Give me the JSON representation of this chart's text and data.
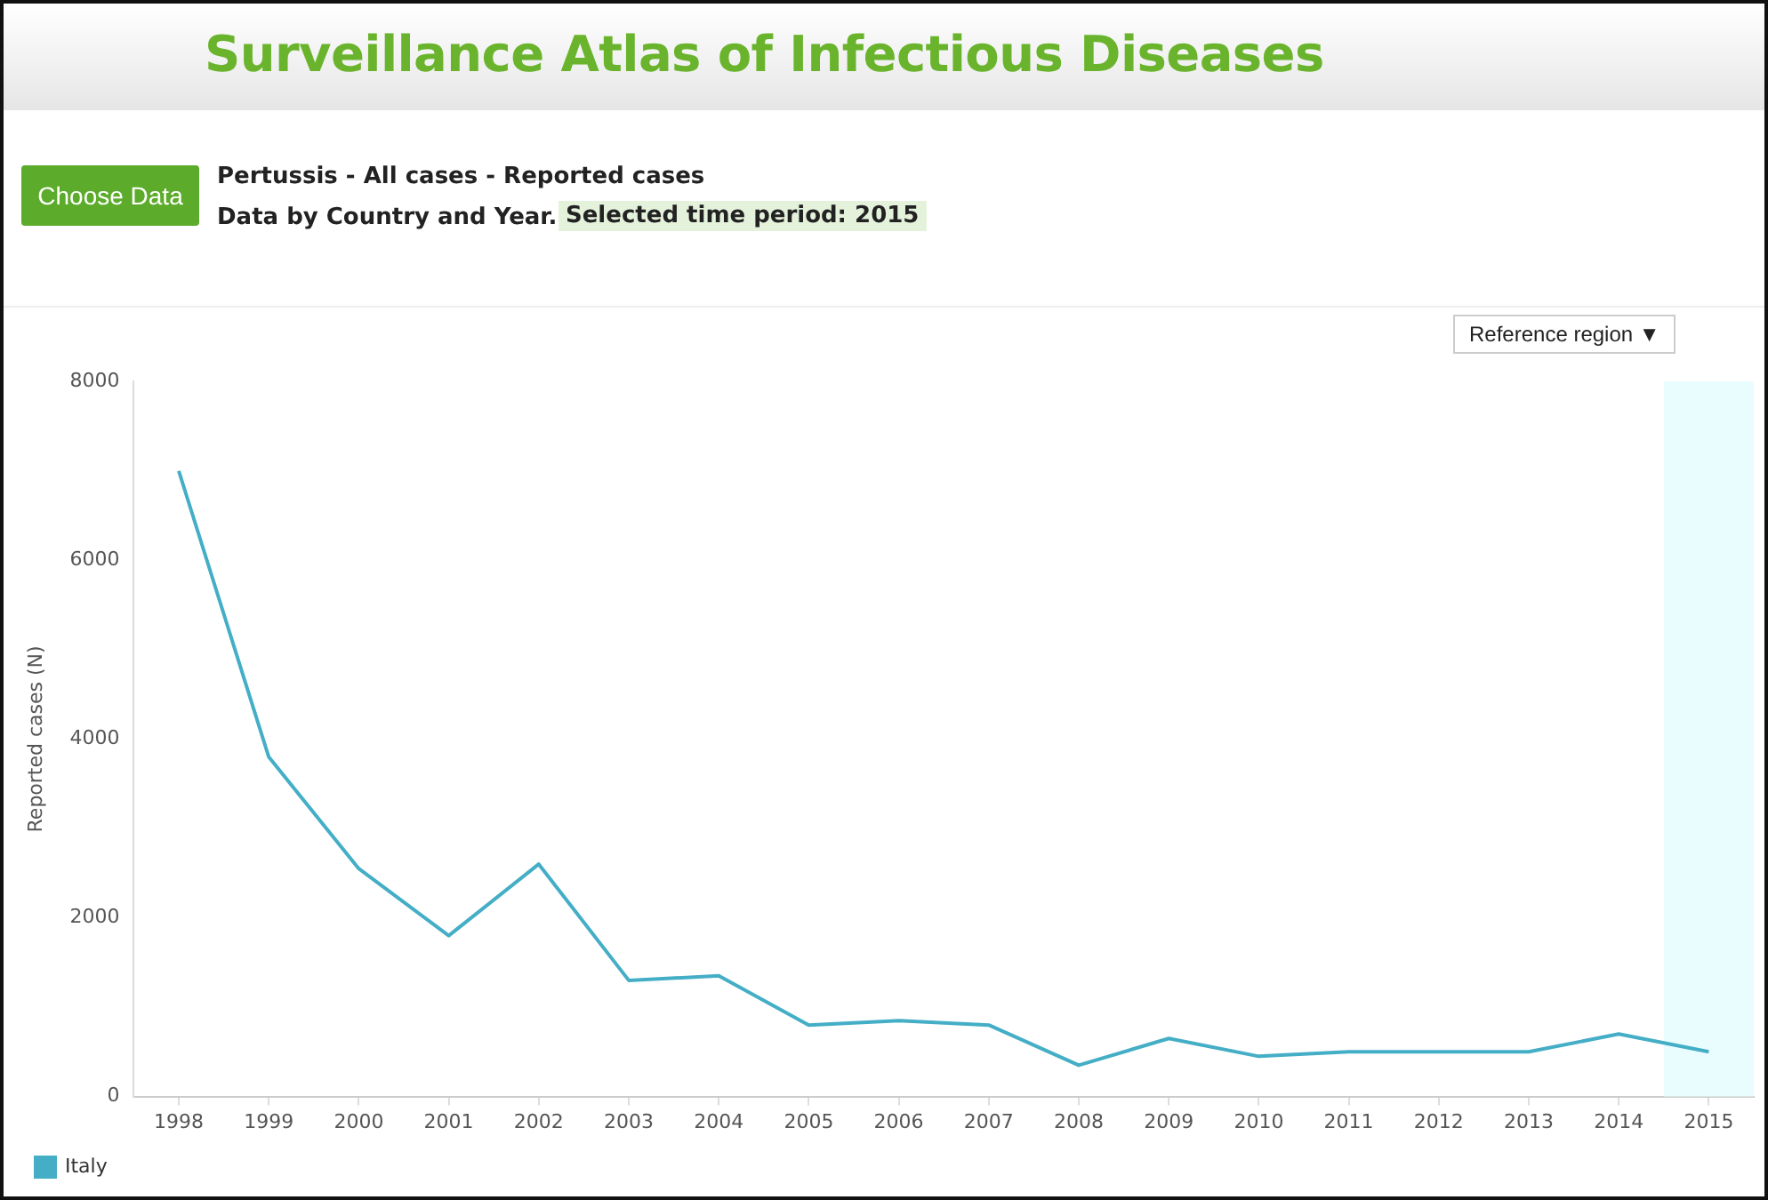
{
  "chart_data": {
    "type": "line",
    "title": "Surveillance Atlas of Infectious Diseases",
    "subtitle": "Pertussis - All cases - Reported cases",
    "annotations": [
      "Choose Data",
      "Data by Country and Year.",
      "Selected time period: 2015",
      "Reference region ▼"
    ],
    "ylabel": "Reported cases (N)",
    "x": [
      1998,
      1999,
      2000,
      2001,
      2002,
      2003,
      2004,
      2005,
      2006,
      2007,
      2008,
      2009,
      2010,
      2011,
      2012,
      2013,
      2014,
      2015
    ],
    "series": [
      {
        "name": "Italy",
        "color": "#44aec6",
        "values": [
          7000,
          3800,
          2550,
          1800,
          2600,
          1300,
          1350,
          800,
          850,
          800,
          350,
          650,
          450,
          500,
          500,
          500,
          700,
          500
        ]
      }
    ],
    "xlim": [
      1997.5,
      2015.5
    ],
    "xticks": [
      1998,
      1999,
      2000,
      2001,
      2002,
      2003,
      2004,
      2005,
      2006,
      2007,
      2008,
      2009,
      2010,
      2011,
      2012,
      2013,
      2014,
      2015
    ],
    "ylim": [
      0,
      8000
    ],
    "yticks": [
      0,
      2000,
      4000,
      6000,
      8000
    ],
    "bands": [
      {
        "axis": "x",
        "from": 2014.5,
        "to": 2015.5,
        "color": "#e9fdfe"
      }
    ],
    "grid": false,
    "legend": "bottom left",
    "marker": "none",
    "line_style": "solid"
  }
}
